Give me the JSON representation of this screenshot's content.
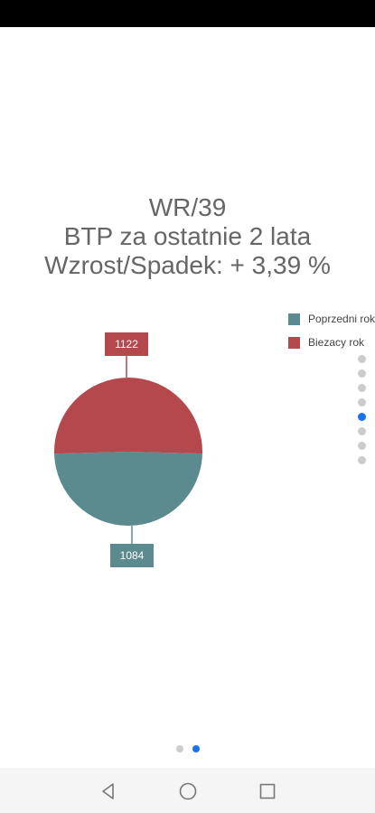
{
  "title": {
    "line1": "WR/39",
    "line2": "BTP za ostatnie 2 lata",
    "line3": "Wzrost/Spadek: + 3,39 %"
  },
  "chart_data": {
    "type": "pie",
    "categories": [
      "Poprzedni rok",
      "Biezacy rok"
    ],
    "values": [
      1084,
      1122
    ],
    "labels": [
      "1084",
      "1122"
    ],
    "colors": [
      "#5b8a8f",
      "#b5484c"
    ],
    "legend_position": "right"
  },
  "legend": {
    "items": [
      {
        "label": "Poprzedni rok",
        "color": "#5b8a8f"
      },
      {
        "label": "Biezacy rok",
        "color": "#b5484c"
      }
    ]
  },
  "side_pager": {
    "count": 8,
    "active_index": 4
  },
  "page_indicator": {
    "count": 2,
    "active_index": 1
  },
  "navbar": {
    "back_icon": "back-triangle-icon",
    "home_icon": "home-circle-icon",
    "recents_icon": "recents-square-icon"
  },
  "colors": {
    "accent": "#1a73e8",
    "statusbar": "#000000",
    "navbar": "#f5f5f5"
  }
}
